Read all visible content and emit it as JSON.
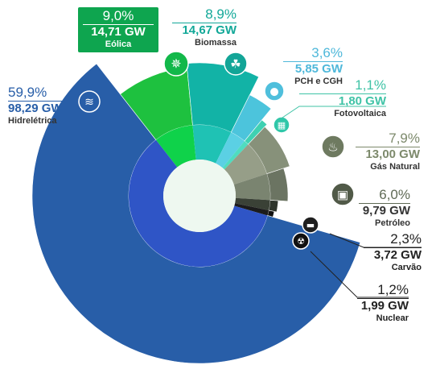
{
  "chart_data": {
    "type": "pie",
    "title": "",
    "slices": [
      {
        "name": "Eólica",
        "percent": "9,0%",
        "capacity": "14,71 GW",
        "value": 9.0,
        "capacity_gw": 14.71,
        "color": "#1ec13f",
        "inner_color": "#0fd24a",
        "icon": "wind-turbine-icon"
      },
      {
        "name": "Biomassa",
        "percent": "8,9%",
        "capacity": "14,67 GW",
        "value": 8.9,
        "capacity_gw": 14.67,
        "color": "#12b3a6",
        "inner_color": "#1fc2b4",
        "icon": "plant-leaf-icon"
      },
      {
        "name": "PCH e CGH",
        "percent": "3,6%",
        "capacity": "5,85 GW",
        "value": 3.6,
        "capacity_gw": 5.85,
        "color": "#4cc4dc",
        "inner_color": "#5bd0e4",
        "icon": "water-drop-icon"
      },
      {
        "name": "Fotovoltaica",
        "percent": "1,1%",
        "capacity": "1,80 GW",
        "value": 1.1,
        "capacity_gw": 1.8,
        "color": "#3fd1b2",
        "inner_color": "#4fdcc0",
        "icon": "solar-panel-icon"
      },
      {
        "name": "Gás Natural",
        "percent": "7,9%",
        "capacity": "13,00 GW",
        "value": 7.9,
        "capacity_gw": 13.0,
        "color": "#87917a",
        "inner_color": "#969e88",
        "icon": "flame-icon"
      },
      {
        "name": "Petróleo",
        "percent": "6,0%",
        "capacity": "9,79 GW",
        "value": 6.0,
        "capacity_gw": 9.79,
        "color": "#6b7462",
        "inner_color": "#7a8470",
        "icon": "oil-barrel-icon"
      },
      {
        "name": "Carvão",
        "percent": "2,3%",
        "capacity": "3,72 GW",
        "value": 2.3,
        "capacity_gw": 3.72,
        "color": "#2f352c",
        "inner_color": "#3a4136",
        "icon": "coal-cart-icon"
      },
      {
        "name": "Nuclear",
        "percent": "1,2%",
        "capacity": "1,99 GW",
        "value": 1.2,
        "capacity_gw": 1.99,
        "color": "#111111",
        "inner_color": "#1c1c1c",
        "icon": "nuclear-plant-icon"
      },
      {
        "name": "Hidrelétrica",
        "percent": "59,9%",
        "capacity": "98,29 GW",
        "value": 59.9,
        "capacity_gw": 98.29,
        "color": "#285ea8",
        "inner_color": "#2f55c6",
        "icon": "dam-waves-icon"
      }
    ]
  },
  "colors": {
    "background": "#ffffff",
    "hole": "#eef8f0",
    "eolica_box": "#0ea54f",
    "hidro_text": "#285ea8",
    "biomassa_text": "#12a898",
    "pch_text": "#4fb8da",
    "foto_text": "#3fc3a6",
    "gas_text": "#7d8a6c",
    "petroleo_text": "#5f6a55",
    "dark_text": "#222222"
  }
}
